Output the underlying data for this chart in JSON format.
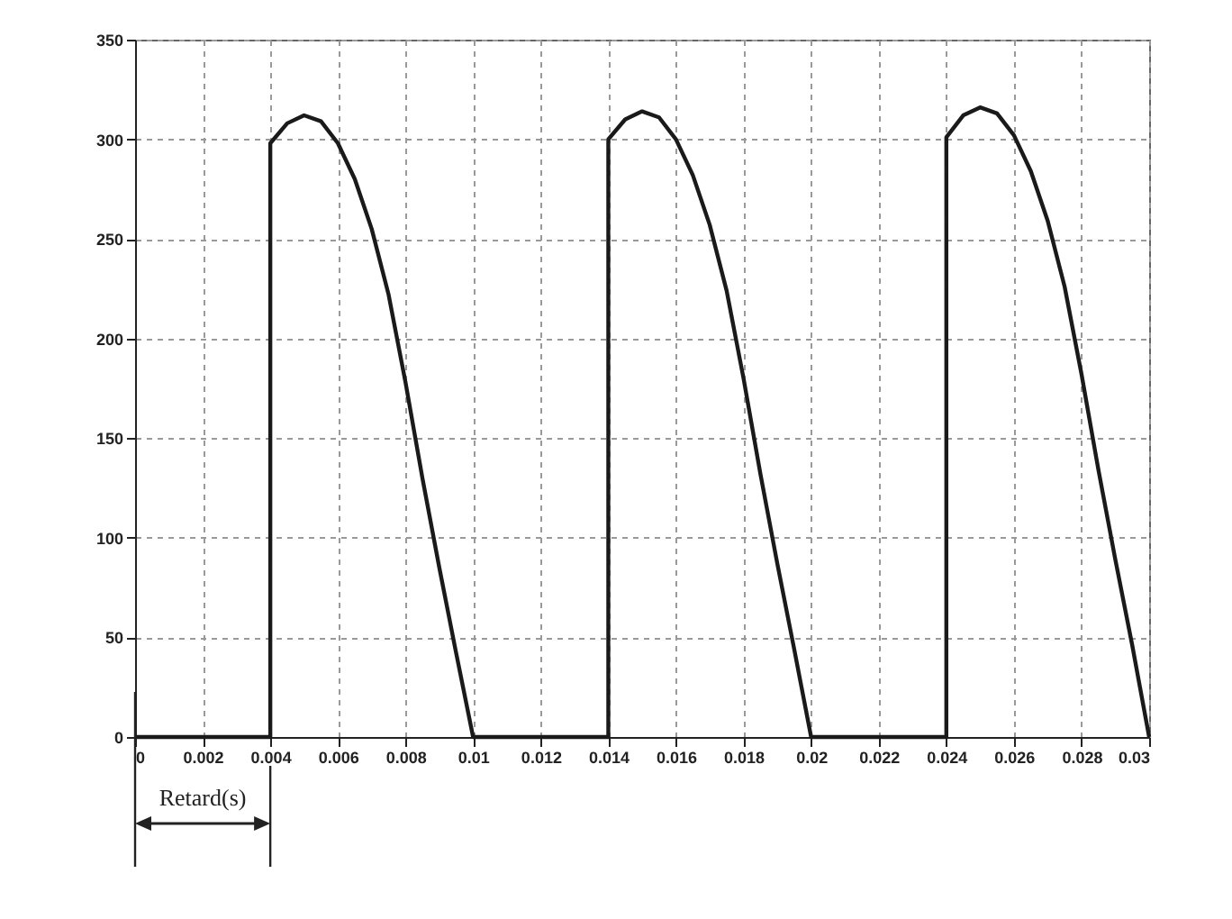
{
  "chart_data": {
    "type": "line",
    "x": [
      0,
      0.004,
      0.004,
      0.0045,
      0.005,
      0.0055,
      0.006,
      0.0065,
      0.007,
      0.0075,
      0.008,
      0.0085,
      0.009,
      0.0095,
      0.01,
      0.014,
      0.014,
      0.0145,
      0.015,
      0.0155,
      0.016,
      0.0165,
      0.017,
      0.0175,
      0.018,
      0.0185,
      0.019,
      0.0195,
      0.02,
      0.024,
      0.024,
      0.0245,
      0.025,
      0.0255,
      0.026,
      0.0265,
      0.027,
      0.0275,
      0.028,
      0.0285,
      0.029,
      0.0295,
      0.03
    ],
    "series": [
      {
        "color": "#1a1a1a",
        "values": [
          0,
          0,
          298,
          308,
          312,
          309,
          298,
          280,
          255,
          222,
          178,
          130,
          85,
          42,
          0,
          0,
          300,
          310,
          314,
          311,
          300,
          282,
          257,
          224,
          180,
          132,
          87,
          44,
          0,
          0,
          301,
          312,
          316,
          313,
          302,
          284,
          259,
          226,
          182,
          134,
          89,
          46,
          0
        ]
      }
    ],
    "xlim": [
      0,
      0.03
    ],
    "xticks": [
      0,
      0.002,
      0.004,
      0.006,
      0.008,
      0.01,
      0.012,
      0.014,
      0.016,
      0.018,
      0.02,
      0.022,
      0.024,
      0.026,
      0.028,
      0.03
    ],
    "ylim": [
      0,
      350
    ],
    "yticks": [
      0,
      50,
      100,
      150,
      200,
      250,
      300,
      350
    ],
    "grid": true,
    "annotations": [
      "Retard(s)"
    ]
  }
}
